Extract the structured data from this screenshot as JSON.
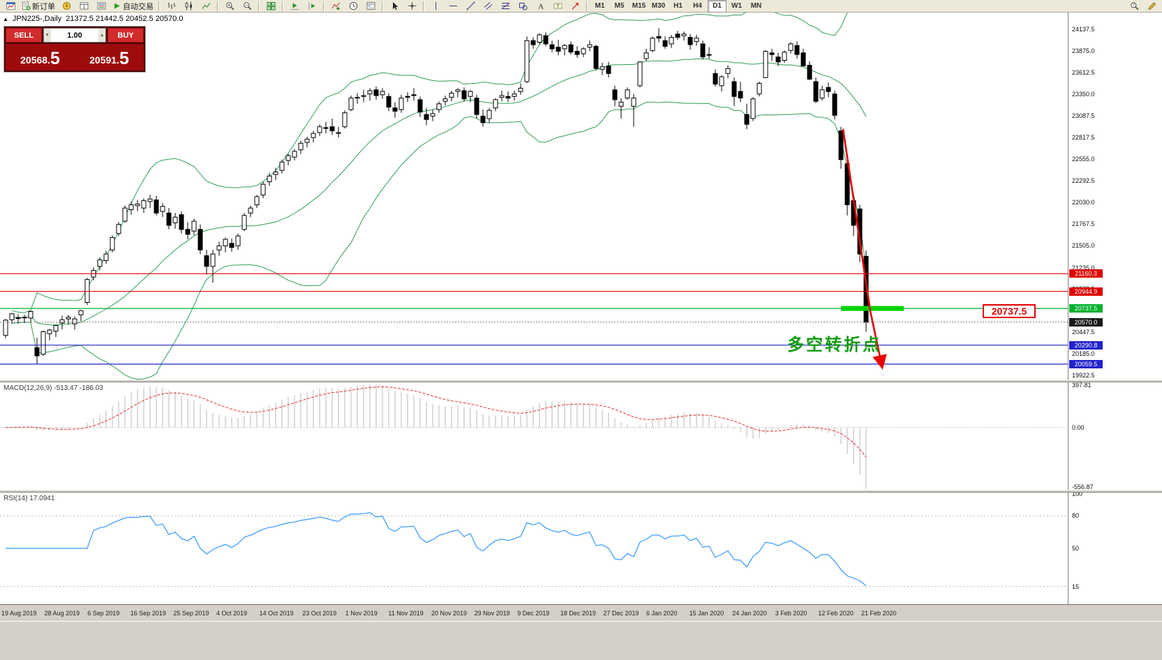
{
  "toolbar": {
    "active_timeframe": "D1",
    "buttons": [
      {
        "type": "icon",
        "name": "chart-window-icon"
      },
      {
        "type": "text",
        "name": "new-order-button",
        "icon": "new-order-icon",
        "label": "新订单"
      },
      {
        "type": "icon",
        "name": "profiles-icon"
      },
      {
        "type": "icon",
        "name": "data-window-icon"
      },
      {
        "type": "icon",
        "name": "market-watch-icon"
      },
      {
        "type": "text",
        "name": "auto-trading-button",
        "icon": "auto-trading-icon",
        "label": "自动交易"
      },
      {
        "type": "sep"
      },
      {
        "type": "icon",
        "name": "bar-chart-icon"
      },
      {
        "type": "icon",
        "name": "candlestick-chart-icon"
      },
      {
        "type": "icon",
        "name": "line-chart-icon"
      },
      {
        "type": "sep"
      },
      {
        "type": "icon",
        "name": "zoom-in-icon"
      },
      {
        "type": "icon",
        "name": "zoom-out-icon"
      },
      {
        "type": "sep"
      },
      {
        "type": "icon",
        "name": "tile-windows-icon"
      },
      {
        "type": "sep"
      },
      {
        "type": "icon",
        "name": "auto-scroll-icon"
      },
      {
        "type": "icon",
        "name": "chart-shift-icon"
      },
      {
        "type": "sep"
      },
      {
        "type": "icon",
        "name": "indicators-icon"
      },
      {
        "type": "icon",
        "name": "periods-icon"
      },
      {
        "type": "icon",
        "name": "templates-icon"
      },
      {
        "type": "sep"
      },
      {
        "type": "icon",
        "name": "cursor-icon"
      },
      {
        "type": "icon",
        "name": "crosshair-icon"
      },
      {
        "type": "sep"
      },
      {
        "type": "icon",
        "name": "vertical-line-icon"
      },
      {
        "type": "icon",
        "name": "horizontal-line-icon"
      },
      {
        "type": "icon",
        "name": "trendline-icon"
      },
      {
        "type": "icon",
        "name": "channel-icon"
      },
      {
        "type": "icon",
        "name": "fibonacci-icon"
      },
      {
        "type": "icon",
        "name": "shapes-icon"
      },
      {
        "type": "icon",
        "name": "text-icon"
      },
      {
        "type": "icon",
        "name": "label-icon"
      },
      {
        "type": "icon",
        "name": "arrows-icon"
      },
      {
        "type": "sep"
      },
      {
        "type": "tf",
        "label": "M1"
      },
      {
        "type": "tf",
        "label": "M5"
      },
      {
        "type": "tf",
        "label": "M15"
      },
      {
        "type": "tf",
        "label": "M30"
      },
      {
        "type": "tf",
        "label": "H1"
      },
      {
        "type": "tf",
        "label": "H4"
      },
      {
        "type": "tf",
        "label": "D1"
      },
      {
        "type": "tf",
        "label": "W1"
      },
      {
        "type": "tf",
        "label": "MN"
      },
      {
        "type": "spacer"
      },
      {
        "type": "icon",
        "name": "search-icon"
      },
      {
        "type": "icon",
        "name": "edit-icon"
      }
    ]
  },
  "order_panel": {
    "sell_label": "SELL",
    "buy_label": "BUY",
    "volume": "1.00",
    "sell_price_main": "20568.",
    "sell_price_pip": "5",
    "buy_price_main": "20591.",
    "buy_price_pip": "5"
  },
  "chart_header": {
    "collapse_glyph": "▲",
    "symbol": "JPN225-,Daily",
    "ohlc": "21372.5 21442.5 20452.5 20570.0"
  },
  "annotations": {
    "turning_point_text": "多空转折点",
    "price_tag": "20737.5"
  },
  "macd": {
    "label": "MACD(12,26,9) -513.47 -186.03",
    "params": [
      12,
      26,
      9
    ],
    "axis_labels": [
      "397.81",
      "0.00",
      "-556.87"
    ],
    "range": [
      -556.87,
      397.81
    ]
  },
  "rsi": {
    "label": "RSI(14) 17.0941",
    "period": 14,
    "axis_labels": [
      [
        100,
        "100"
      ],
      [
        80,
        "80"
      ],
      [
        50,
        "50"
      ],
      [
        15,
        "15"
      ]
    ],
    "levels": [
      80,
      15
    ]
  },
  "chart_data": {
    "type": "candlestick",
    "symbol": "JPN225-",
    "timeframe": "Daily",
    "ylim": [
      19922.5,
      24137.5
    ],
    "y_ticks": [
      "24137.5",
      "23875.0",
      "23612.5",
      "23350.0",
      "23087.5",
      "22817.5",
      "22555.0",
      "22292.5",
      "22030.0",
      "21767.5",
      "21505.0",
      "21235.0",
      "20972.5",
      "20710.0",
      "20447.5",
      "20185.0",
      "19922.5"
    ],
    "x_labels": [
      "19 Aug 2019",
      "28 Aug 2019",
      "6 Sep 2019",
      "16 Sep 2019",
      "25 Sep 2019",
      "4 Oct 2019",
      "14 Oct 2019",
      "23 Oct 2019",
      "1 Nov 2019",
      "11 Nov 2019",
      "20 Nov 2019",
      "29 Nov 2019",
      "9 Dec 2019",
      "18 Dec 2019",
      "27 Dec 2019",
      "6 Jan 2020",
      "15 Jan 2020",
      "24 Jan 2020",
      "3 Feb 2020",
      "12 Feb 2020",
      "21 Feb 2020"
    ],
    "hlines": [
      {
        "value": 21160.3,
        "label": "21160.3",
        "color": "#dd0000"
      },
      {
        "value": 20944.9,
        "label": "20944.9",
        "color": "#dd0000"
      },
      {
        "value": 20737.5,
        "label": "20737.5",
        "color": "#00b22d"
      },
      {
        "value": 20290.8,
        "label": "20290.8",
        "color": "#2222cc"
      },
      {
        "value": 20059.5,
        "label": "20059.5",
        "color": "#2222cc"
      }
    ],
    "current_price": {
      "value": 20570.0,
      "label": "20570.0",
      "color": "#1a1a1a"
    },
    "support_bar": {
      "price": 20737.5
    },
    "bollinger": {
      "period": 20,
      "deviation": 2
    },
    "candles": [
      [
        20410,
        20610,
        20375,
        20595
      ],
      [
        20600,
        20683,
        20550,
        20672
      ],
      [
        20625,
        20666,
        20555,
        20615
      ],
      [
        20630,
        20660,
        20560,
        20628
      ],
      [
        20620,
        20712,
        20570,
        20700
      ],
      [
        20260,
        20380,
        20065,
        20160
      ],
      [
        20180,
        20470,
        20160,
        20455
      ],
      [
        20430,
        20490,
        20350,
        20475
      ],
      [
        20460,
        20540,
        20390,
        20530
      ],
      [
        20560,
        20650,
        20480,
        20600
      ],
      [
        20610,
        20660,
        20540,
        20630
      ],
      [
        20550,
        20640,
        20480,
        20610
      ],
      [
        20660,
        20720,
        20580,
        20710
      ],
      [
        20810,
        21110,
        20780,
        21090
      ],
      [
        21120,
        21240,
        21080,
        21200
      ],
      [
        21250,
        21360,
        21200,
        21330
      ],
      [
        21320,
        21440,
        21280,
        21400
      ],
      [
        21450,
        21630,
        21420,
        21600
      ],
      [
        21650,
        21790,
        21620,
        21760
      ],
      [
        21800,
        21990,
        21780,
        21960
      ],
      [
        21940,
        22040,
        21880,
        22000
      ],
      [
        21990,
        22060,
        21920,
        22010
      ],
      [
        21960,
        22080,
        21900,
        22050
      ],
      [
        22040,
        22120,
        21960,
        22070
      ],
      [
        22060,
        22110,
        21870,
        21900
      ],
      [
        21920,
        22020,
        21850,
        21980
      ],
      [
        21900,
        21960,
        21700,
        21750
      ],
      [
        21780,
        21900,
        21710,
        21850
      ],
      [
        21880,
        21920,
        21650,
        21700
      ],
      [
        21700,
        21790,
        21580,
        21640
      ],
      [
        21680,
        21830,
        21630,
        21800
      ],
      [
        21700,
        21760,
        21400,
        21450
      ],
      [
        21380,
        21450,
        21150,
        21250
      ],
      [
        21250,
        21450,
        21050,
        21400
      ],
      [
        21450,
        21550,
        21380,
        21500
      ],
      [
        21500,
        21600,
        21420,
        21580
      ],
      [
        21530,
        21590,
        21430,
        21480
      ],
      [
        21500,
        21650,
        21450,
        21620
      ],
      [
        21700,
        21900,
        21680,
        21870
      ],
      [
        21900,
        21990,
        21850,
        21960
      ],
      [
        22000,
        22120,
        21960,
        22100
      ],
      [
        22120,
        22280,
        22080,
        22250
      ],
      [
        22280,
        22390,
        22230,
        22350
      ],
      [
        22370,
        22450,
        22300,
        22400
      ],
      [
        22420,
        22550,
        22380,
        22520
      ],
      [
        22540,
        22620,
        22480,
        22600
      ],
      [
        22580,
        22680,
        22540,
        22650
      ],
      [
        22670,
        22780,
        22620,
        22750
      ],
      [
        22760,
        22830,
        22700,
        22800
      ],
      [
        22820,
        22900,
        22760,
        22870
      ],
      [
        22880,
        22980,
        22840,
        22950
      ],
      [
        22940,
        23010,
        22870,
        22930
      ],
      [
        22950,
        23050,
        22850,
        22900
      ],
      [
        22870,
        22950,
        22820,
        22880
      ],
      [
        22950,
        23150,
        22930,
        23120
      ],
      [
        23160,
        23330,
        23140,
        23300
      ],
      [
        23310,
        23360,
        23230,
        23300
      ],
      [
        23320,
        23400,
        23250,
        23330
      ],
      [
        23350,
        23420,
        23270,
        23390
      ],
      [
        23400,
        23440,
        23280,
        23330
      ],
      [
        23340,
        23420,
        23290,
        23380
      ],
      [
        23320,
        23360,
        23140,
        23190
      ],
      [
        23180,
        23250,
        23060,
        23140
      ],
      [
        23160,
        23340,
        23120,
        23300
      ],
      [
        23320,
        23370,
        23250,
        23310
      ],
      [
        23340,
        23420,
        23270,
        23330
      ],
      [
        23280,
        23320,
        23070,
        23130
      ],
      [
        23100,
        23180,
        22970,
        23040
      ],
      [
        23080,
        23160,
        23020,
        23110
      ],
      [
        23160,
        23260,
        23120,
        23230
      ],
      [
        23260,
        23330,
        23210,
        23290
      ],
      [
        23310,
        23390,
        23260,
        23360
      ],
      [
        23380,
        23420,
        23310,
        23400
      ],
      [
        23390,
        23430,
        23260,
        23290
      ],
      [
        23320,
        23400,
        23250,
        23380
      ],
      [
        23300,
        23340,
        23050,
        23100
      ],
      [
        23080,
        23160,
        22950,
        23000
      ],
      [
        23050,
        23180,
        23000,
        23150
      ],
      [
        23180,
        23300,
        23140,
        23280
      ],
      [
        23310,
        23390,
        23260,
        23330
      ],
      [
        23320,
        23380,
        23250,
        23300
      ],
      [
        23320,
        23390,
        23270,
        23350
      ],
      [
        23380,
        23480,
        23340,
        23420
      ],
      [
        23500,
        24050,
        23480,
        24000
      ],
      [
        24000,
        24040,
        23900,
        23950
      ],
      [
        23980,
        24090,
        23950,
        24070
      ],
      [
        24060,
        24100,
        23930,
        23960
      ],
      [
        23950,
        24000,
        23860,
        23900
      ],
      [
        23920,
        24010,
        23820,
        23870
      ],
      [
        23900,
        23960,
        23820,
        23940
      ],
      [
        23950,
        23990,
        23830,
        23860
      ],
      [
        23870,
        23930,
        23790,
        23830
      ],
      [
        23840,
        23920,
        23800,
        23900
      ],
      [
        23920,
        24000,
        23870,
        23950
      ],
      [
        23930,
        23950,
        23640,
        23660
      ],
      [
        23650,
        23730,
        23580,
        23680
      ],
      [
        23690,
        23740,
        23550,
        23600
      ],
      [
        23400,
        23450,
        23200,
        23280
      ],
      [
        23200,
        23300,
        23050,
        23250
      ],
      [
        23300,
        23430,
        23280,
        23400
      ],
      [
        23200,
        23350,
        22950,
        23300
      ],
      [
        23450,
        23750,
        23430,
        23740
      ],
      [
        23780,
        23900,
        23750,
        23850
      ],
      [
        23880,
        24050,
        23860,
        24030
      ],
      [
        24050,
        24150,
        23980,
        24030
      ],
      [
        24000,
        24050,
        23900,
        23930
      ],
      [
        23960,
        24070,
        23910,
        24040
      ],
      [
        24080,
        24120,
        24010,
        24040
      ],
      [
        24060,
        24110,
        24000,
        24080
      ],
      [
        24040,
        24080,
        23890,
        23950
      ],
      [
        23990,
        24070,
        23940,
        24030
      ],
      [
        23960,
        24000,
        23770,
        23800
      ],
      [
        23830,
        23920,
        23780,
        23830
      ],
      [
        23600,
        23650,
        23440,
        23470
      ],
      [
        23450,
        23580,
        23380,
        23560
      ],
      [
        23600,
        23700,
        23540,
        23660
      ],
      [
        23500,
        23550,
        23200,
        23320
      ],
      [
        23380,
        23500,
        23250,
        23300
      ],
      [
        23100,
        23230,
        22920,
        22980
      ],
      [
        23050,
        23310,
        23020,
        23290
      ],
      [
        23350,
        23500,
        23320,
        23480
      ],
      [
        23550,
        23880,
        23540,
        23870
      ],
      [
        23850,
        23900,
        23750,
        23830
      ],
      [
        23800,
        23850,
        23690,
        23740
      ],
      [
        23760,
        23880,
        23730,
        23860
      ],
      [
        23880,
        23980,
        23840,
        23960
      ],
      [
        23940,
        23990,
        23780,
        23830
      ],
      [
        23850,
        23900,
        23690,
        23690
      ],
      [
        23700,
        23750,
        23520,
        23530
      ],
      [
        23500,
        23550,
        23240,
        23260
      ],
      [
        23300,
        23450,
        23270,
        23400
      ],
      [
        23430,
        23490,
        23310,
        23380
      ],
      [
        23350,
        23390,
        23040,
        23090
      ],
      [
        22900,
        22950,
        22440,
        22550
      ],
      [
        22500,
        22540,
        21870,
        22000
      ],
      [
        22050,
        22120,
        21620,
        21750
      ],
      [
        21950,
        22000,
        21300,
        21400
      ],
      [
        21372.5,
        21442.5,
        20452.5,
        20570
      ]
    ]
  }
}
